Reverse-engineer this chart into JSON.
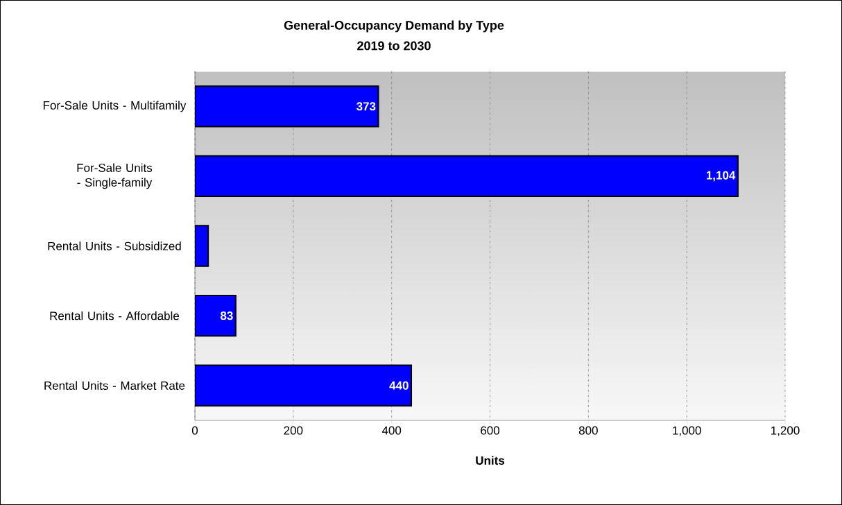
{
  "chart_data": {
    "type": "bar",
    "orientation": "horizontal",
    "title": "General-Occupancy Demand by Type",
    "subtitle": "2019 to 2030",
    "xlabel": "Units",
    "categories": [
      "For-Sale Units - Multifamily",
      "For-Sale Units - Single-family",
      "Rental Units - Subsidized",
      "Rental Units - Affordable",
      "Rental Units - Market Rate"
    ],
    "values": [
      373,
      1104,
      27,
      83,
      440
    ],
    "value_labels": [
      "373",
      "1,104",
      null,
      "83",
      "440"
    ],
    "color": "#0000ff",
    "xlim": [
      0,
      1200
    ],
    "xticks": [
      0,
      200,
      400,
      600,
      800,
      {
        "value": 1000,
        "label": "1,000"
      },
      {
        "value": 1200,
        "label": "1,200"
      }
    ],
    "grid": "x"
  }
}
